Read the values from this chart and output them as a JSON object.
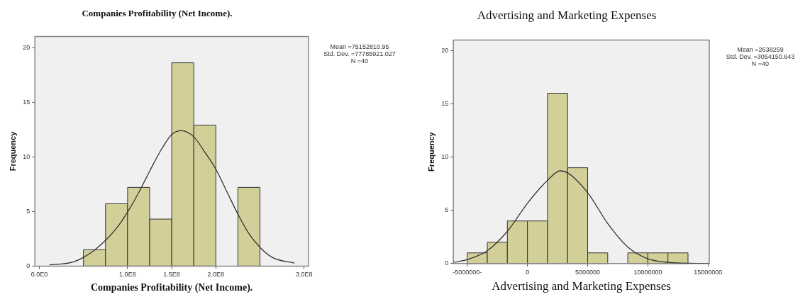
{
  "chart_data": [
    {
      "type": "histogram",
      "title": "Companies Profitability (Net Income).",
      "xlabel": "Companies Profitability (Net Income).",
      "ylabel": "Frequency",
      "bins": [
        50000000,
        75000000,
        100000000,
        125000000,
        150000000,
        175000000,
        200000000,
        225000000,
        250000000
      ],
      "values": [
        1.5,
        5.7,
        7.2,
        4.3,
        18.6,
        12.9,
        0,
        7.2
      ],
      "color": "#d3cf98",
      "series": [
        {
          "type": "line",
          "color": "#333333",
          "x": [
            11500000,
            36600000,
            50000000,
            62900000,
            75400000,
            88000000,
            100000000,
            113200000,
            125400000,
            138300000,
            150200000,
            161000000,
            175100000,
            187300000,
            200000000,
            212400000,
            224900000,
            237600000,
            250200000,
            263900000,
            289000000
          ],
          "values": [
            0.11,
            0.34,
            0.8,
            1.48,
            2.39,
            3.52,
            4.95,
            6.82,
            8.75,
            10.68,
            12.05,
            12.39,
            11.82,
            10.45,
            8.86,
            6.82,
            4.77,
            2.95,
            1.7,
            0.8,
            0.27
          ]
        }
      ],
      "xlim": [
        -5000000,
        305000000
      ],
      "xticks": [
        {
          "value": 0,
          "label": "0.0E0"
        },
        {
          "value": 100000000,
          "label": "1.0E8"
        },
        {
          "value": 150000000,
          "label": "1.5E8"
        },
        {
          "value": 200000000,
          "label": "2.0E8"
        },
        {
          "value": 300000000,
          "label": "3.0E8"
        }
      ],
      "ylim": [
        0,
        21
      ],
      "yticks": [
        0,
        5,
        10,
        15,
        20
      ],
      "annotations": [
        "Mean =75152810.95",
        "Std. Dev. =77785921.027",
        "N =40"
      ]
    },
    {
      "type": "histogram",
      "title": "Advertising and Marketing Expenses",
      "xlabel": "Advertising and Marketing Expenses",
      "ylabel": "Frequency",
      "bins": [
        -5000000,
        -3333000,
        -1667000,
        0,
        1667000,
        3333000,
        5000000,
        6667000,
        8333000,
        10000000,
        11667000,
        13333000
      ],
      "values": [
        1,
        2,
        4,
        4,
        16,
        9,
        1,
        0,
        1,
        1,
        1
      ],
      "color": "#d3cf98",
      "series": [
        {
          "type": "line",
          "color": "#333333",
          "x": [
            -6150000,
            -4990000,
            -3340000,
            -1650000,
            0,
            1690000,
            2720000,
            3360000,
            5010000,
            6700000,
            8350000,
            10000000,
            11690000,
            15100000
          ],
          "values": [
            0.11,
            0.37,
            1.2,
            3.05,
            5.66,
            7.84,
            8.71,
            8.5,
            6.64,
            3.7,
            1.53,
            0.44,
            0.11,
            0
          ]
        }
      ],
      "xlim": [
        -6150000,
        15100000
      ],
      "xticks": [
        {
          "value": -5000000,
          "label": "-5000000-"
        },
        0,
        5000000,
        10000000,
        15000000
      ],
      "ylim": [
        0,
        21
      ],
      "yticks": [
        0,
        5,
        10,
        15,
        20
      ],
      "annotations": [
        "Mean =2638259",
        "Std. Dev. =3054150.643",
        "N =40"
      ]
    }
  ]
}
